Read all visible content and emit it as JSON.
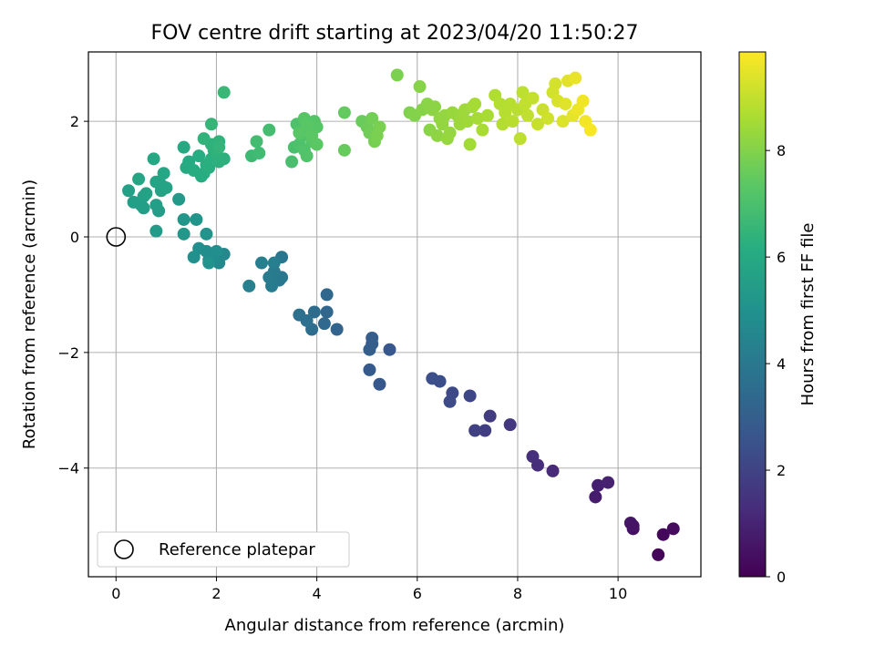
{
  "chart_data": {
    "type": "scatter",
    "title": "FOV centre drift starting at 2023/04/20 11:50:27",
    "xlabel": "Angular distance from reference (arcmin)",
    "ylabel": "Rotation from reference (arcmin)",
    "xlim": [
      -0.55,
      11.65
    ],
    "ylim": [
      -5.88,
      3.2
    ],
    "x_ticks": [
      0,
      2,
      4,
      6,
      8,
      10
    ],
    "y_ticks": [
      -4,
      -2,
      0,
      2
    ],
    "y_tick_labels": [
      "−4",
      "−2",
      "0",
      "2"
    ],
    "grid": true,
    "legend": {
      "position": "lower-left",
      "entries": [
        "Reference platepar"
      ]
    },
    "colorbar": {
      "label": "Hours from first FF file",
      "range": [
        0,
        9.85
      ],
      "ticks": [
        0,
        2,
        4,
        6,
        8
      ],
      "colormap": "viridis"
    },
    "reference_point": {
      "x": 0,
      "y": 0,
      "label": "Reference platepar",
      "marker": "open-circle"
    },
    "points": [
      {
        "x": 10.8,
        "y": -5.5,
        "c": 0.1
      },
      {
        "x": 10.9,
        "y": -5.15,
        "c": 0.2
      },
      {
        "x": 11.1,
        "y": -5.05,
        "c": 0.3
      },
      {
        "x": 10.3,
        "y": -5.05,
        "c": 0.5
      },
      {
        "x": 10.25,
        "y": -4.95,
        "c": 0.6
      },
      {
        "x": 10.3,
        "y": -5.0,
        "c": 0.55
      },
      {
        "x": 9.55,
        "y": -4.5,
        "c": 0.8
      },
      {
        "x": 9.6,
        "y": -4.3,
        "c": 0.9
      },
      {
        "x": 9.8,
        "y": -4.25,
        "c": 0.95
      },
      {
        "x": 8.7,
        "y": -4.05,
        "c": 1.2
      },
      {
        "x": 8.4,
        "y": -3.95,
        "c": 1.3
      },
      {
        "x": 8.3,
        "y": -3.8,
        "c": 1.35
      },
      {
        "x": 7.85,
        "y": -3.25,
        "c": 1.6
      },
      {
        "x": 7.45,
        "y": -3.1,
        "c": 1.75
      },
      {
        "x": 7.35,
        "y": -3.35,
        "c": 1.8
      },
      {
        "x": 7.15,
        "y": -3.35,
        "c": 1.9
      },
      {
        "x": 7.05,
        "y": -2.75,
        "c": 2.1
      },
      {
        "x": 6.7,
        "y": -2.7,
        "c": 2.2
      },
      {
        "x": 6.65,
        "y": -2.85,
        "c": 2.25
      },
      {
        "x": 6.45,
        "y": -2.5,
        "c": 2.35
      },
      {
        "x": 6.3,
        "y": -2.45,
        "c": 2.4
      },
      {
        "x": 5.45,
        "y": -1.95,
        "c": 2.7
      },
      {
        "x": 5.25,
        "y": -2.55,
        "c": 2.75
      },
      {
        "x": 5.05,
        "y": -2.3,
        "c": 2.8
      },
      {
        "x": 5.1,
        "y": -1.85,
        "c": 2.9
      },
      {
        "x": 5.1,
        "y": -1.75,
        "c": 2.95
      },
      {
        "x": 5.05,
        "y": -1.95,
        "c": 3.0
      },
      {
        "x": 4.4,
        "y": -1.6,
        "c": 3.2
      },
      {
        "x": 4.2,
        "y": -1.3,
        "c": 3.3
      },
      {
        "x": 4.2,
        "y": -1.0,
        "c": 3.35
      },
      {
        "x": 4.15,
        "y": -1.5,
        "c": 3.4
      },
      {
        "x": 3.95,
        "y": -1.3,
        "c": 3.5
      },
      {
        "x": 3.9,
        "y": -1.6,
        "c": 3.55
      },
      {
        "x": 3.8,
        "y": -1.45,
        "c": 3.6
      },
      {
        "x": 3.65,
        "y": -1.35,
        "c": 3.65
      },
      {
        "x": 3.3,
        "y": -0.35,
        "c": 3.9
      },
      {
        "x": 3.3,
        "y": -0.7,
        "c": 3.95
      },
      {
        "x": 3.25,
        "y": -0.75,
        "c": 4.0
      },
      {
        "x": 3.15,
        "y": -0.6,
        "c": 4.05
      },
      {
        "x": 3.1,
        "y": -0.85,
        "c": 4.1
      },
      {
        "x": 3.05,
        "y": -0.7,
        "c": 4.15
      },
      {
        "x": 3.15,
        "y": -0.45,
        "c": 4.2
      },
      {
        "x": 2.9,
        "y": -0.45,
        "c": 4.25
      },
      {
        "x": 2.65,
        "y": -0.85,
        "c": 4.3
      },
      {
        "x": 2.15,
        "y": -0.3,
        "c": 4.6
      },
      {
        "x": 2.05,
        "y": -0.45,
        "c": 4.65
      },
      {
        "x": 1.95,
        "y": -0.35,
        "c": 4.7
      },
      {
        "x": 1.85,
        "y": -0.4,
        "c": 4.75
      },
      {
        "x": 1.8,
        "y": -0.25,
        "c": 4.8
      },
      {
        "x": 2.0,
        "y": -0.25,
        "c": 4.85
      },
      {
        "x": 1.65,
        "y": -0.2,
        "c": 4.9
      },
      {
        "x": 1.55,
        "y": -0.35,
        "c": 4.95
      },
      {
        "x": 1.85,
        "y": -0.45,
        "c": 5.0
      },
      {
        "x": 1.8,
        "y": 0.05,
        "c": 5.1
      },
      {
        "x": 1.6,
        "y": 0.3,
        "c": 5.15
      },
      {
        "x": 1.35,
        "y": 0.3,
        "c": 5.2
      },
      {
        "x": 1.35,
        "y": 0.05,
        "c": 5.25
      },
      {
        "x": 1.25,
        "y": 0.65,
        "c": 5.3
      },
      {
        "x": 0.8,
        "y": 0.1,
        "c": 5.4
      },
      {
        "x": 0.85,
        "y": 0.45,
        "c": 5.45
      },
      {
        "x": 0.8,
        "y": 0.55,
        "c": 5.5
      },
      {
        "x": 0.55,
        "y": 0.5,
        "c": 5.5
      },
      {
        "x": 0.5,
        "y": 0.55,
        "c": 5.55
      },
      {
        "x": 0.35,
        "y": 0.6,
        "c": 5.55
      },
      {
        "x": 0.25,
        "y": 0.8,
        "c": 5.6
      },
      {
        "x": 0.55,
        "y": 0.7,
        "c": 5.6
      },
      {
        "x": 0.6,
        "y": 0.75,
        "c": 5.65
      },
      {
        "x": 0.9,
        "y": 0.8,
        "c": 5.7
      },
      {
        "x": 0.9,
        "y": 0.9,
        "c": 5.7
      },
      {
        "x": 1.0,
        "y": 0.85,
        "c": 5.75
      },
      {
        "x": 0.8,
        "y": 0.95,
        "c": 5.75
      },
      {
        "x": 0.45,
        "y": 1.0,
        "c": 5.8
      },
      {
        "x": 0.95,
        "y": 1.1,
        "c": 5.85
      },
      {
        "x": 0.75,
        "y": 1.35,
        "c": 5.9
      },
      {
        "x": 1.35,
        "y": 1.55,
        "c": 6.0
      },
      {
        "x": 1.4,
        "y": 1.2,
        "c": 6.05
      },
      {
        "x": 1.45,
        "y": 1.3,
        "c": 6.05
      },
      {
        "x": 1.55,
        "y": 1.15,
        "c": 6.1
      },
      {
        "x": 1.7,
        "y": 1.05,
        "c": 6.1
      },
      {
        "x": 1.75,
        "y": 1.1,
        "c": 6.15
      },
      {
        "x": 1.65,
        "y": 1.4,
        "c": 6.15
      },
      {
        "x": 1.8,
        "y": 1.25,
        "c": 6.2
      },
      {
        "x": 1.85,
        "y": 1.2,
        "c": 6.2
      },
      {
        "x": 1.9,
        "y": 1.35,
        "c": 6.25
      },
      {
        "x": 1.95,
        "y": 1.5,
        "c": 6.25
      },
      {
        "x": 2.05,
        "y": 1.3,
        "c": 6.3
      },
      {
        "x": 2.15,
        "y": 1.35,
        "c": 6.3
      },
      {
        "x": 2.0,
        "y": 1.45,
        "c": 6.35
      },
      {
        "x": 1.9,
        "y": 1.6,
        "c": 6.35
      },
      {
        "x": 1.75,
        "y": 1.7,
        "c": 6.4
      },
      {
        "x": 2.05,
        "y": 1.65,
        "c": 6.4
      },
      {
        "x": 2.05,
        "y": 1.55,
        "c": 6.45
      },
      {
        "x": 1.9,
        "y": 1.95,
        "c": 6.5
      },
      {
        "x": 2.15,
        "y": 2.5,
        "c": 6.6
      },
      {
        "x": 2.7,
        "y": 1.4,
        "c": 6.7
      },
      {
        "x": 2.85,
        "y": 1.45,
        "c": 6.75
      },
      {
        "x": 2.8,
        "y": 1.65,
        "c": 6.8
      },
      {
        "x": 3.05,
        "y": 1.85,
        "c": 6.85
      },
      {
        "x": 3.5,
        "y": 1.3,
        "c": 6.95
      },
      {
        "x": 3.55,
        "y": 1.55,
        "c": 7.0
      },
      {
        "x": 3.6,
        "y": 1.95,
        "c": 7.05
      },
      {
        "x": 3.65,
        "y": 1.6,
        "c": 7.05
      },
      {
        "x": 3.7,
        "y": 1.75,
        "c": 7.1
      },
      {
        "x": 3.75,
        "y": 1.5,
        "c": 7.1
      },
      {
        "x": 3.8,
        "y": 1.4,
        "c": 7.15
      },
      {
        "x": 3.85,
        "y": 1.85,
        "c": 7.15
      },
      {
        "x": 3.9,
        "y": 1.65,
        "c": 7.2
      },
      {
        "x": 3.95,
        "y": 2.0,
        "c": 7.2
      },
      {
        "x": 3.75,
        "y": 2.05,
        "c": 7.25
      },
      {
        "x": 4.0,
        "y": 1.9,
        "c": 7.25
      },
      {
        "x": 3.65,
        "y": 1.8,
        "c": 7.3
      },
      {
        "x": 3.8,
        "y": 1.95,
        "c": 7.3
      },
      {
        "x": 4.0,
        "y": 1.6,
        "c": 7.35
      },
      {
        "x": 3.9,
        "y": 1.75,
        "c": 7.35
      },
      {
        "x": 4.55,
        "y": 2.15,
        "c": 7.5
      },
      {
        "x": 4.55,
        "y": 1.5,
        "c": 7.55
      },
      {
        "x": 4.9,
        "y": 2.0,
        "c": 7.6
      },
      {
        "x": 5.0,
        "y": 1.9,
        "c": 7.65
      },
      {
        "x": 5.05,
        "y": 1.8,
        "c": 7.7
      },
      {
        "x": 5.1,
        "y": 2.05,
        "c": 7.75
      },
      {
        "x": 5.15,
        "y": 1.65,
        "c": 7.8
      },
      {
        "x": 5.2,
        "y": 1.75,
        "c": 7.85
      },
      {
        "x": 5.25,
        "y": 1.9,
        "c": 7.85
      },
      {
        "x": 5.6,
        "y": 2.8,
        "c": 7.9
      },
      {
        "x": 5.85,
        "y": 2.15,
        "c": 7.95
      },
      {
        "x": 5.95,
        "y": 2.1,
        "c": 8.0
      },
      {
        "x": 6.05,
        "y": 2.6,
        "c": 8.05
      },
      {
        "x": 6.1,
        "y": 2.2,
        "c": 8.05
      },
      {
        "x": 6.2,
        "y": 2.3,
        "c": 8.1
      },
      {
        "x": 6.25,
        "y": 1.85,
        "c": 8.1
      },
      {
        "x": 6.3,
        "y": 2.2,
        "c": 8.15
      },
      {
        "x": 6.35,
        "y": 2.25,
        "c": 8.15
      },
      {
        "x": 6.4,
        "y": 1.75,
        "c": 8.2
      },
      {
        "x": 6.45,
        "y": 2.05,
        "c": 8.2
      },
      {
        "x": 6.5,
        "y": 1.95,
        "c": 8.25
      },
      {
        "x": 6.55,
        "y": 2.1,
        "c": 8.25
      },
      {
        "x": 6.6,
        "y": 1.7,
        "c": 8.3
      },
      {
        "x": 6.65,
        "y": 1.8,
        "c": 8.3
      },
      {
        "x": 6.7,
        "y": 2.15,
        "c": 8.35
      },
      {
        "x": 6.8,
        "y": 2.1,
        "c": 8.35
      },
      {
        "x": 6.85,
        "y": 1.95,
        "c": 8.4
      },
      {
        "x": 6.9,
        "y": 2.05,
        "c": 8.4
      },
      {
        "x": 6.95,
        "y": 2.2,
        "c": 8.45
      },
      {
        "x": 7.0,
        "y": 2.0,
        "c": 8.45
      },
      {
        "x": 7.05,
        "y": 1.6,
        "c": 8.5
      },
      {
        "x": 7.1,
        "y": 2.25,
        "c": 8.5
      },
      {
        "x": 7.15,
        "y": 2.3,
        "c": 8.55
      },
      {
        "x": 7.2,
        "y": 2.05,
        "c": 8.55
      },
      {
        "x": 7.3,
        "y": 1.85,
        "c": 8.6
      },
      {
        "x": 7.4,
        "y": 2.1,
        "c": 8.6
      },
      {
        "x": 7.55,
        "y": 2.45,
        "c": 8.7
      },
      {
        "x": 7.65,
        "y": 2.3,
        "c": 8.75
      },
      {
        "x": 7.7,
        "y": 1.95,
        "c": 8.75
      },
      {
        "x": 7.75,
        "y": 2.15,
        "c": 8.8
      },
      {
        "x": 7.85,
        "y": 2.3,
        "c": 8.8
      },
      {
        "x": 7.9,
        "y": 2.0,
        "c": 8.85
      },
      {
        "x": 8.0,
        "y": 2.2,
        "c": 8.85
      },
      {
        "x": 8.05,
        "y": 1.7,
        "c": 8.9
      },
      {
        "x": 8.1,
        "y": 2.5,
        "c": 8.9
      },
      {
        "x": 8.15,
        "y": 2.3,
        "c": 8.95
      },
      {
        "x": 8.2,
        "y": 2.1,
        "c": 8.95
      },
      {
        "x": 8.3,
        "y": 2.4,
        "c": 9.0
      },
      {
        "x": 8.4,
        "y": 1.95,
        "c": 9.05
      },
      {
        "x": 8.5,
        "y": 2.2,
        "c": 9.1
      },
      {
        "x": 8.6,
        "y": 2.05,
        "c": 9.15
      },
      {
        "x": 8.7,
        "y": 2.5,
        "c": 9.2
      },
      {
        "x": 8.75,
        "y": 2.65,
        "c": 9.25
      },
      {
        "x": 8.8,
        "y": 2.35,
        "c": 9.3
      },
      {
        "x": 8.9,
        "y": 2.0,
        "c": 9.35
      },
      {
        "x": 8.95,
        "y": 2.3,
        "c": 9.4
      },
      {
        "x": 9.0,
        "y": 2.7,
        "c": 9.45
      },
      {
        "x": 9.1,
        "y": 2.1,
        "c": 9.5
      },
      {
        "x": 9.15,
        "y": 2.75,
        "c": 9.55
      },
      {
        "x": 9.2,
        "y": 2.2,
        "c": 9.6
      },
      {
        "x": 9.3,
        "y": 2.35,
        "c": 9.65
      },
      {
        "x": 9.35,
        "y": 2.0,
        "c": 9.7
      },
      {
        "x": 9.45,
        "y": 1.85,
        "c": 9.75
      }
    ]
  }
}
